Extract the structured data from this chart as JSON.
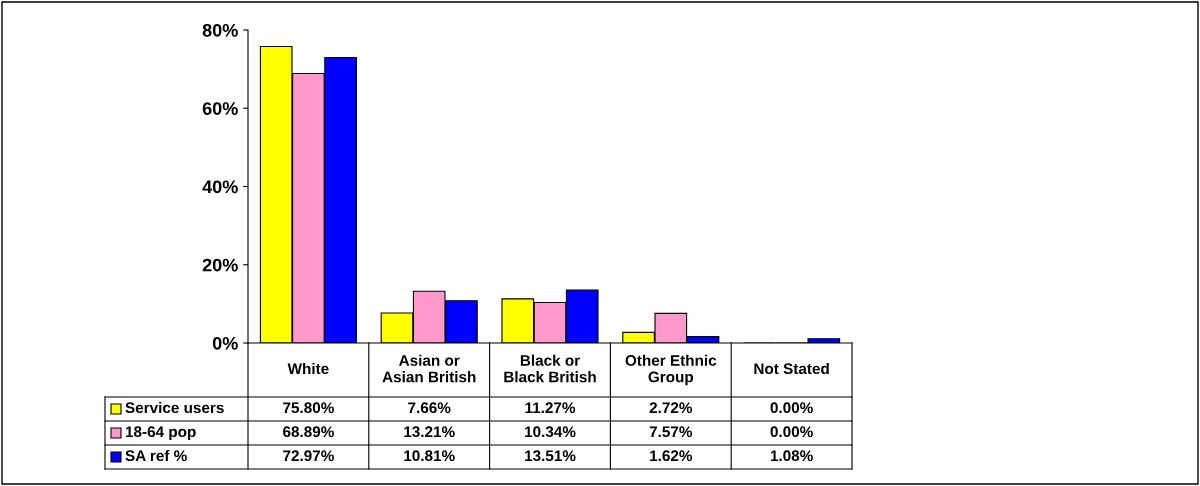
{
  "chart_data": {
    "type": "bar",
    "categories": [
      "White",
      "Asian or\nAsian British",
      "Black or\nBlack British",
      "Other Ethnic\nGroup",
      "Not Stated"
    ],
    "series": [
      {
        "name": "Service users",
        "color": "#ffff00",
        "values": [
          75.8,
          7.66,
          11.27,
          2.72,
          0.0
        ],
        "value_labels": [
          "75.80%",
          "7.66%",
          "11.27%",
          "2.72%",
          "0.00%"
        ]
      },
      {
        "name": "18-64 pop",
        "color": "#ff99cc",
        "values": [
          68.89,
          13.21,
          10.34,
          7.57,
          0.0
        ],
        "value_labels": [
          "68.89%",
          "13.21%",
          "10.34%",
          "7.57%",
          "0.00%"
        ]
      },
      {
        "name": "SA ref %",
        "color": "#0000ff",
        "values": [
          72.97,
          10.81,
          13.51,
          1.62,
          1.08
        ],
        "value_labels": [
          "72.97%",
          "10.81%",
          "13.51%",
          "1.62%",
          "1.08%"
        ]
      }
    ],
    "ylim": [
      0,
      80
    ],
    "yticks": [
      {
        "value": 0,
        "label": "0%"
      },
      {
        "value": 20,
        "label": "20%"
      },
      {
        "value": 40,
        "label": "40%"
      },
      {
        "value": 60,
        "label": "60%"
      },
      {
        "value": 80,
        "label": "80%"
      }
    ],
    "grid": false,
    "legend": "bottom"
  }
}
